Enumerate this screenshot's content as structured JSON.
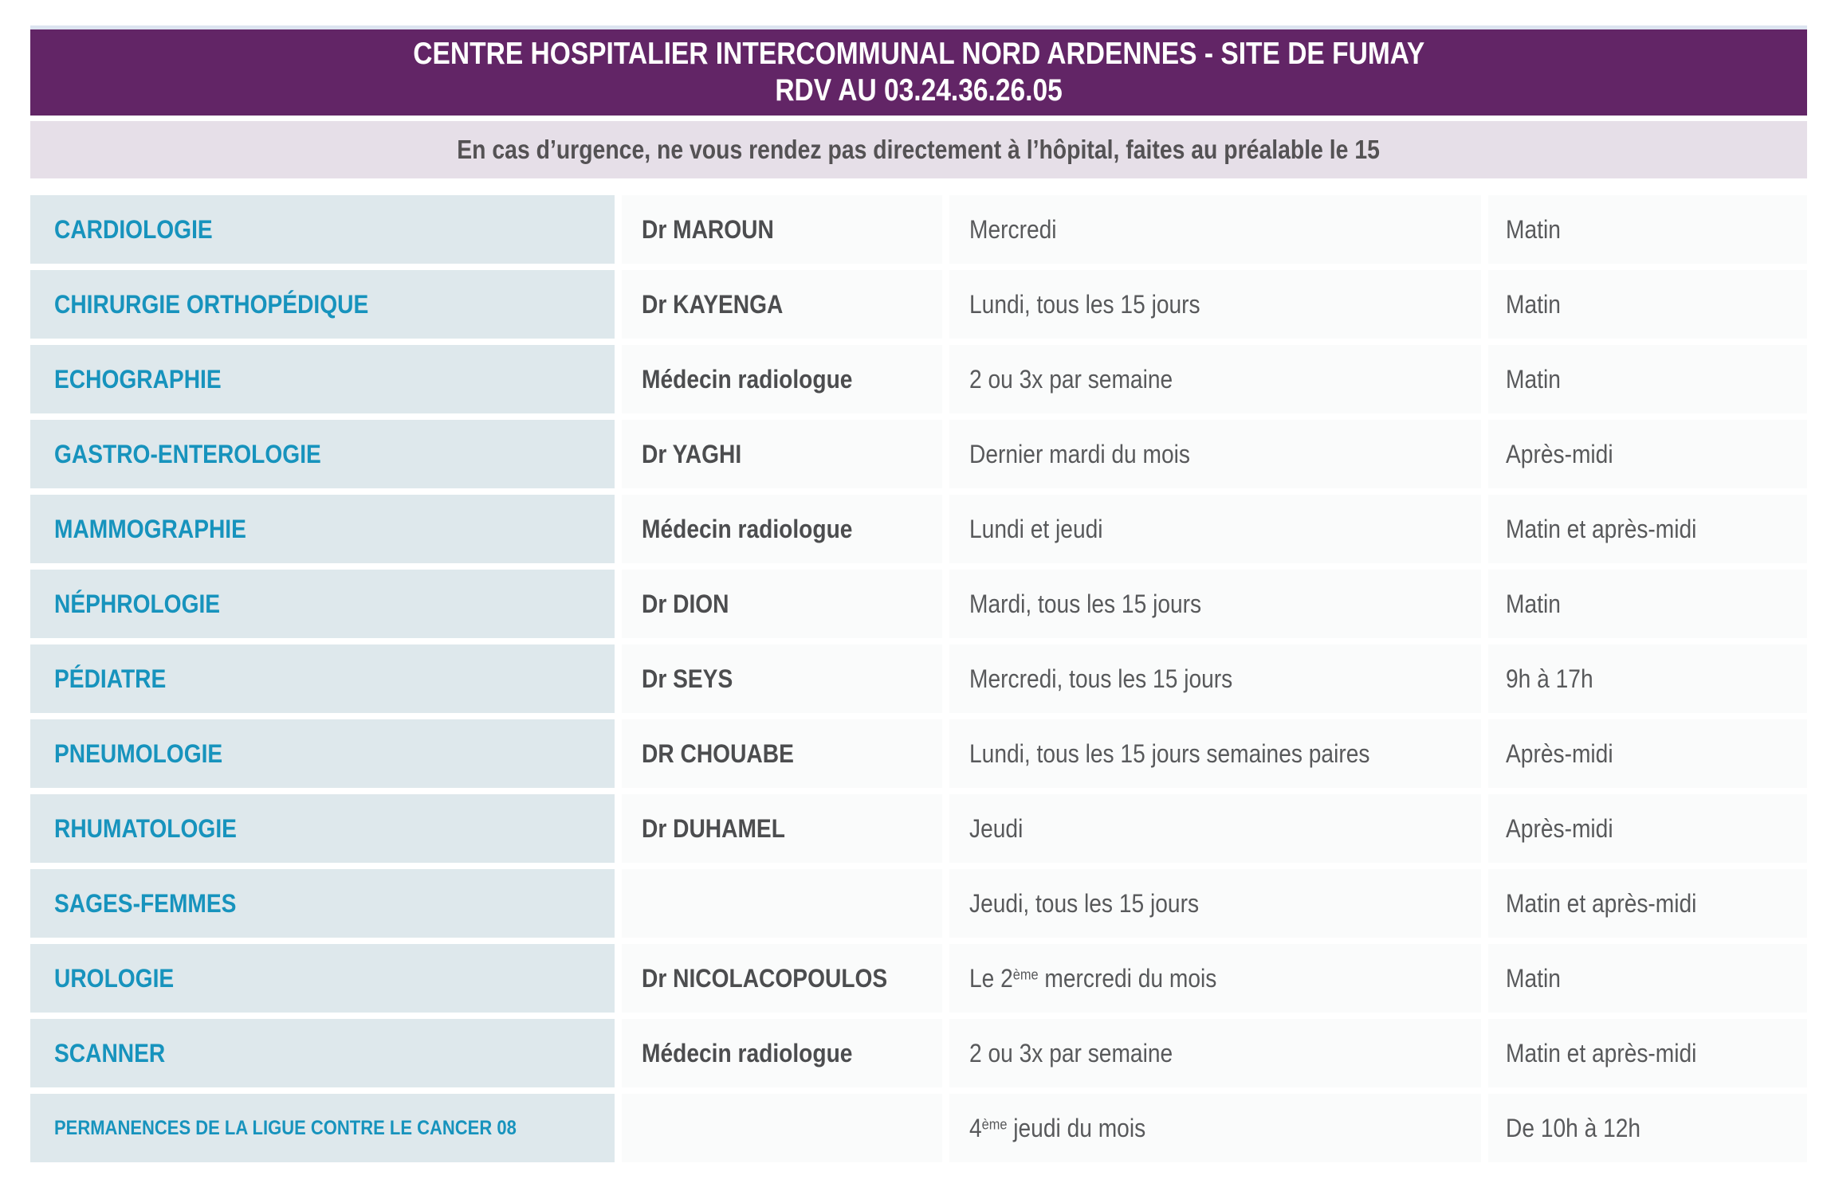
{
  "header": {
    "title_line1": "CENTRE HOSPITALIER INTERCOMMUNAL NORD ARDENNES - SITE DE FUMAY",
    "title_line2": "RDV AU 03.24.36.26.05"
  },
  "notice": {
    "text": "En cas d’urgence, ne vous rendez pas directement à l’hôpital, faites au préalable le 15"
  },
  "colors": {
    "header_bg": "#622566",
    "notice_bg": "#e6dfe8",
    "spec_bg": "#dee8ec",
    "spec_color": "#1793bd",
    "edge_strip": "#dce4f0"
  },
  "table": {
    "rows": [
      {
        "specialty": "CARDIOLOGIE",
        "doctor": "Dr MAROUN",
        "schedule": "Mercredi",
        "time": "Matin"
      },
      {
        "specialty": "CHIRURGIE ORTHOPÉDIQUE",
        "doctor": "Dr KAYENGA",
        "schedule": "Lundi, tous les 15 jours",
        "time": "Matin"
      },
      {
        "specialty": "ECHOGRAPHIE",
        "doctor": "Médecin radiologue",
        "schedule": "2 ou 3x par semaine",
        "time": "Matin"
      },
      {
        "specialty": "GASTRO-ENTEROLOGIE",
        "doctor": "Dr YAGHI",
        "schedule": "Dernier mardi du mois",
        "time": "Après-midi"
      },
      {
        "specialty": "MAMMOGRAPHIE",
        "doctor": "Médecin radiologue",
        "schedule": "Lundi et jeudi",
        "time": "Matin et après-midi"
      },
      {
        "specialty": "NÉPHROLOGIE",
        "doctor": "Dr DION",
        "schedule": "Mardi, tous les 15 jours",
        "time": "Matin"
      },
      {
        "specialty": "PÉDIATRE",
        "doctor": "Dr SEYS",
        "schedule": "Mercredi, tous les 15 jours",
        "time": "9h à 17h"
      },
      {
        "specialty": "PNEUMOLOGIE",
        "doctor": "DR CHOUABE",
        "schedule": "Lundi, tous les 15 jours semaines paires",
        "time": "Après-midi"
      },
      {
        "specialty": "RHUMATOLOGIE",
        "doctor": "Dr DUHAMEL",
        "schedule": "Jeudi",
        "time": "Après-midi"
      },
      {
        "specialty": "SAGES-FEMMES",
        "doctor": "",
        "schedule": "Jeudi, tous les 15 jours",
        "time": "Matin et après-midi"
      },
      {
        "specialty": "UROLOGIE",
        "doctor": "Dr NICOLACOPOULOS",
        "schedule_pre": "Le 2",
        "schedule_sup": "ème",
        "schedule_post": " mercredi du mois",
        "time": "Matin"
      },
      {
        "specialty": "SCANNER",
        "doctor": "Médecin radiologue",
        "schedule": "2 ou 3x par semaine",
        "time": "Matin et après-midi"
      },
      {
        "specialty": "PERMANENCES DE LA LIGUE CONTRE LE CANCER 08",
        "doctor": "",
        "schedule_pre": "4",
        "schedule_sup": "ème",
        "schedule_post": " jeudi du mois",
        "time": "De 10h à 12h"
      }
    ]
  }
}
